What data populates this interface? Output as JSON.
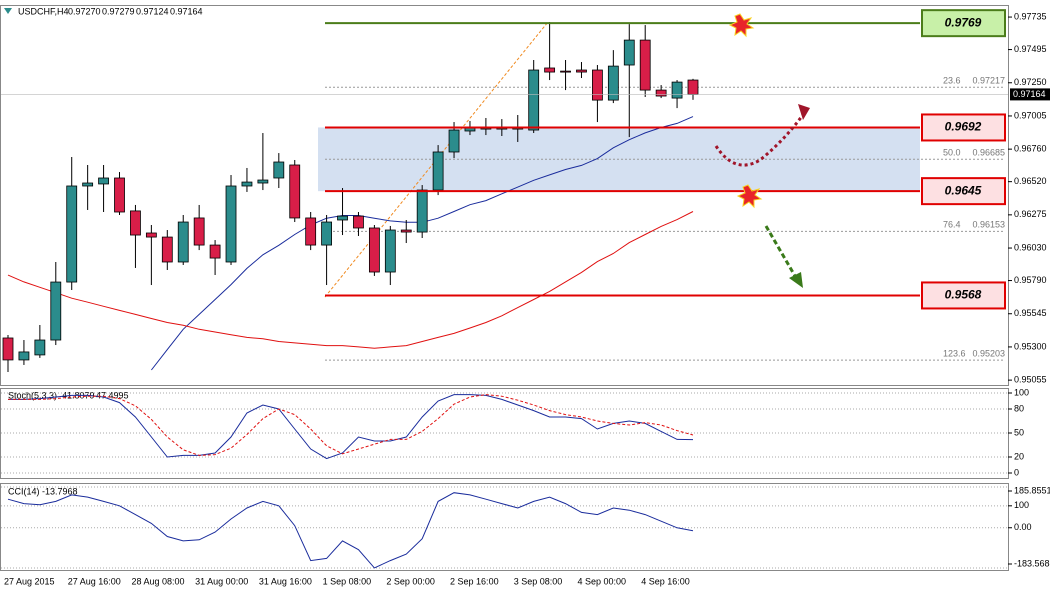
{
  "chart_data": [
    {
      "type": "candlestick",
      "title": "USDCHF,H4",
      "header_labels": [
        "0.97270",
        "0.97279",
        "0.97124",
        "0.97164"
      ],
      "price_label": "0.97164",
      "categories": [
        "27 Aug 2015",
        null,
        null,
        null,
        "27 Aug 16:00",
        null,
        null,
        null,
        "28 Aug 08:00",
        null,
        null,
        null,
        "31 Aug 00:00",
        null,
        null,
        null,
        "31 Aug 16:00",
        null,
        null,
        null,
        "1 Sep 08:00",
        null,
        null,
        null,
        "2 Sep 00:00",
        null,
        null,
        null,
        "2 Sep 16:00",
        null,
        null,
        null,
        "3 Sep 08:00",
        null,
        null,
        null,
        "4 Sep 00:00",
        null,
        null,
        null,
        "4 Sep 16:00",
        null,
        null,
        null
      ],
      "open": [
        0.95366,
        0.95204,
        0.95241,
        0.95351,
        0.95779,
        0.96488,
        0.96503,
        0.96547,
        0.96304,
        0.96141,
        0.96111,
        0.95927,
        0.96252,
        0.96052,
        0.95927,
        0.96488,
        0.9651,
        0.96547,
        0.96643,
        0.96252,
        0.96052,
        0.96237,
        0.96266,
        0.96178,
        0.95853,
        0.96163,
        0.96148,
        0.96458,
        0.96739,
        0.96894,
        0.96908,
        0.96908,
        0.96908,
        0.96901,
        0.97359,
        0.97336,
        0.97344,
        0.97344,
        0.97122,
        0.97381,
        0.97565,
        0.97196,
        0.97137,
        0.9727
      ],
      "high": [
        0.95388,
        0.95351,
        0.95462,
        0.95927,
        0.96702,
        0.96643,
        0.96643,
        0.96591,
        0.96348,
        0.962,
        0.96163,
        0.96274,
        0.96348,
        0.96089,
        0.96569,
        0.96621,
        0.96879,
        0.96731,
        0.9668,
        0.96296,
        0.96274,
        0.96473,
        0.96296,
        0.962,
        0.96193,
        0.96237,
        0.96495,
        0.9679,
        0.9696,
        0.96968,
        0.9699,
        0.96982,
        0.97012,
        0.97418,
        0.97698,
        0.97418,
        0.97403,
        0.97381,
        0.97491,
        0.97683,
        0.97676,
        0.97233,
        0.9727,
        0.97279
      ],
      "low": [
        0.95115,
        0.95167,
        0.95219,
        0.95314,
        0.9572,
        0.96311,
        0.96296,
        0.96274,
        0.95883,
        0.95757,
        0.95868,
        0.95905,
        0.96015,
        0.95831,
        0.95905,
        0.96444,
        0.96458,
        0.96473,
        0.96222,
        0.96015,
        0.95757,
        0.96126,
        0.96119,
        0.95824,
        0.95757,
        0.96067,
        0.96104,
        0.96421,
        0.96694,
        0.96864,
        0.96864,
        0.96857,
        0.96813,
        0.96879,
        0.9727,
        0.97196,
        0.97285,
        0.9696,
        0.971,
        0.96849,
        0.97145,
        0.97137,
        0.97063,
        0.97124
      ],
      "close": [
        0.95204,
        0.95263,
        0.95351,
        0.95779,
        0.96488,
        0.9651,
        0.96547,
        0.96296,
        0.96126,
        0.96111,
        0.95927,
        0.96222,
        0.96052,
        0.95956,
        0.96488,
        0.96517,
        0.96532,
        0.96665,
        0.96252,
        0.96052,
        0.96222,
        0.96266,
        0.96178,
        0.95853,
        0.96163,
        0.96148,
        0.96458,
        0.96739,
        0.96901,
        0.96916,
        0.96916,
        0.96923,
        0.96916,
        0.97344,
        0.97329,
        0.97329,
        0.97329,
        0.97122,
        0.97373,
        0.97565,
        0.97196,
        0.97152,
        0.97255,
        0.97164
      ],
      "up_color": "#2b8c8c",
      "down_color": "#d81e48",
      "ylim": [
        0.95019,
        0.97824
      ],
      "yticks": [
        0.95055,
        {
          "value": 0.953,
          "label": "0.95300"
        },
        0.95545,
        {
          "value": 0.9579,
          "label": "0.95790"
        },
        {
          "value": 0.9603,
          "label": "0.96030"
        },
        0.96275,
        {
          "value": 0.9652,
          "label": "0.96520"
        },
        {
          "value": 0.9676,
          "label": "0.96760"
        },
        0.97005,
        {
          "value": 0.9725,
          "label": "0.97250"
        },
        0.97495,
        0.97735
      ],
      "moving_averages": [
        {
          "color": "#1a2c9c",
          "values": [
            null,
            null,
            null,
            null,
            null,
            null,
            null,
            null,
            null,
            0.9513,
            0.9528,
            0.9543,
            0.9554,
            0.9565,
            0.9576,
            0.9588,
            0.9598,
            0.9605,
            0.9613,
            0.962,
            0.9625,
            0.9627,
            0.9627,
            0.9625,
            0.9623,
            0.9622,
            0.9622,
            0.9625,
            0.963,
            0.9635,
            0.9638,
            0.9643,
            0.9648,
            0.9653,
            0.9657,
            0.9661,
            0.9664,
            0.9669,
            0.9677,
            0.9683,
            0.9688,
            0.9692,
            0.9695,
            0.97
          ]
        },
        {
          "color": "#e01010",
          "values": [
            0.9583,
            0.9578,
            0.9574,
            0.957,
            0.9566,
            0.9563,
            0.956,
            0.9557,
            0.9554,
            0.9551,
            0.9548,
            0.9546,
            0.9543,
            0.9541,
            0.9539,
            0.9537,
            0.9536,
            0.9534,
            0.9533,
            0.9532,
            0.9531,
            0.9531,
            0.953,
            0.9529,
            0.953,
            0.9531,
            0.9534,
            0.9537,
            0.954,
            0.9544,
            0.9548,
            0.9553,
            0.9559,
            0.9565,
            0.9571,
            0.9578,
            0.9585,
            0.9593,
            0.9599,
            0.9607,
            0.9613,
            0.9619,
            0.9624,
            0.963
          ]
        }
      ],
      "levels": [
        0.9769,
        0.9692,
        0.9645,
        0.9568
      ],
      "level_colors": [
        "#4b7d1a",
        "#e00000",
        "#e00000",
        "#e00000"
      ],
      "fib_ratios": [
        23.6,
        {
          "value": 50,
          "label": "50.0"
        },
        76.4,
        123.6
      ],
      "fib_prices": [
        0.97217,
        0.96685,
        0.96153,
        0.95203
      ]
    },
    {
      "type": "line",
      "title": "Stoch(5,3,3)",
      "ylim": [
        -6.25,
        106.25
      ],
      "yticks": [
        0,
        20,
        50,
        80,
        100
      ],
      "series": [
        {
          "color": "#1a2c9c",
          "values": [
            92,
            92,
            93,
            95,
            97,
            97,
            95,
            88,
            70,
            45,
            20,
            22,
            22,
            25,
            45,
            75,
            85,
            80,
            55,
            30,
            18,
            25,
            45,
            40,
            40,
            45,
            70,
            90,
            98,
            98,
            97,
            92,
            85,
            78,
            70,
            70,
            68,
            55,
            62,
            65,
            62,
            52,
            42,
            41.8079
          ]
        },
        {
          "color": "#e01010",
          "dashed": true,
          "values": [
            92,
            92,
            92,
            93,
            95,
            96,
            96,
            93,
            84,
            67,
            45,
            29,
            22,
            23,
            31,
            48,
            68,
            80,
            73,
            55,
            34,
            24,
            30,
            36,
            42,
            42,
            52,
            68,
            86,
            95,
            98,
            96,
            91,
            85,
            78,
            73,
            70,
            65,
            62,
            60,
            63,
            60,
            53,
            47.4995
          ]
        }
      ]
    },
    {
      "type": "line",
      "title": "CCI(14)",
      "ylim": [
        -183.5688,
        185.8551
      ],
      "yticks": [
        -183.5688,
        {
          "value": 0,
          "label": "0.00"
        },
        100,
        185.8551
      ],
      "series": [
        {
          "color": "#1a2c9c",
          "values": [
            130,
            110,
            105,
            120,
            150,
            140,
            120,
            100,
            60,
            20,
            -40,
            -60,
            -55,
            -20,
            40,
            90,
            120,
            100,
            10,
            -150,
            -140,
            -60,
            -100,
            -183,
            -150,
            -120,
            -50,
            120,
            160,
            150,
            130,
            110,
            90,
            120,
            140,
            110,
            70,
            60,
            90,
            80,
            60,
            30,
            0,
            -13.7968
          ]
        }
      ]
    }
  ]
}
